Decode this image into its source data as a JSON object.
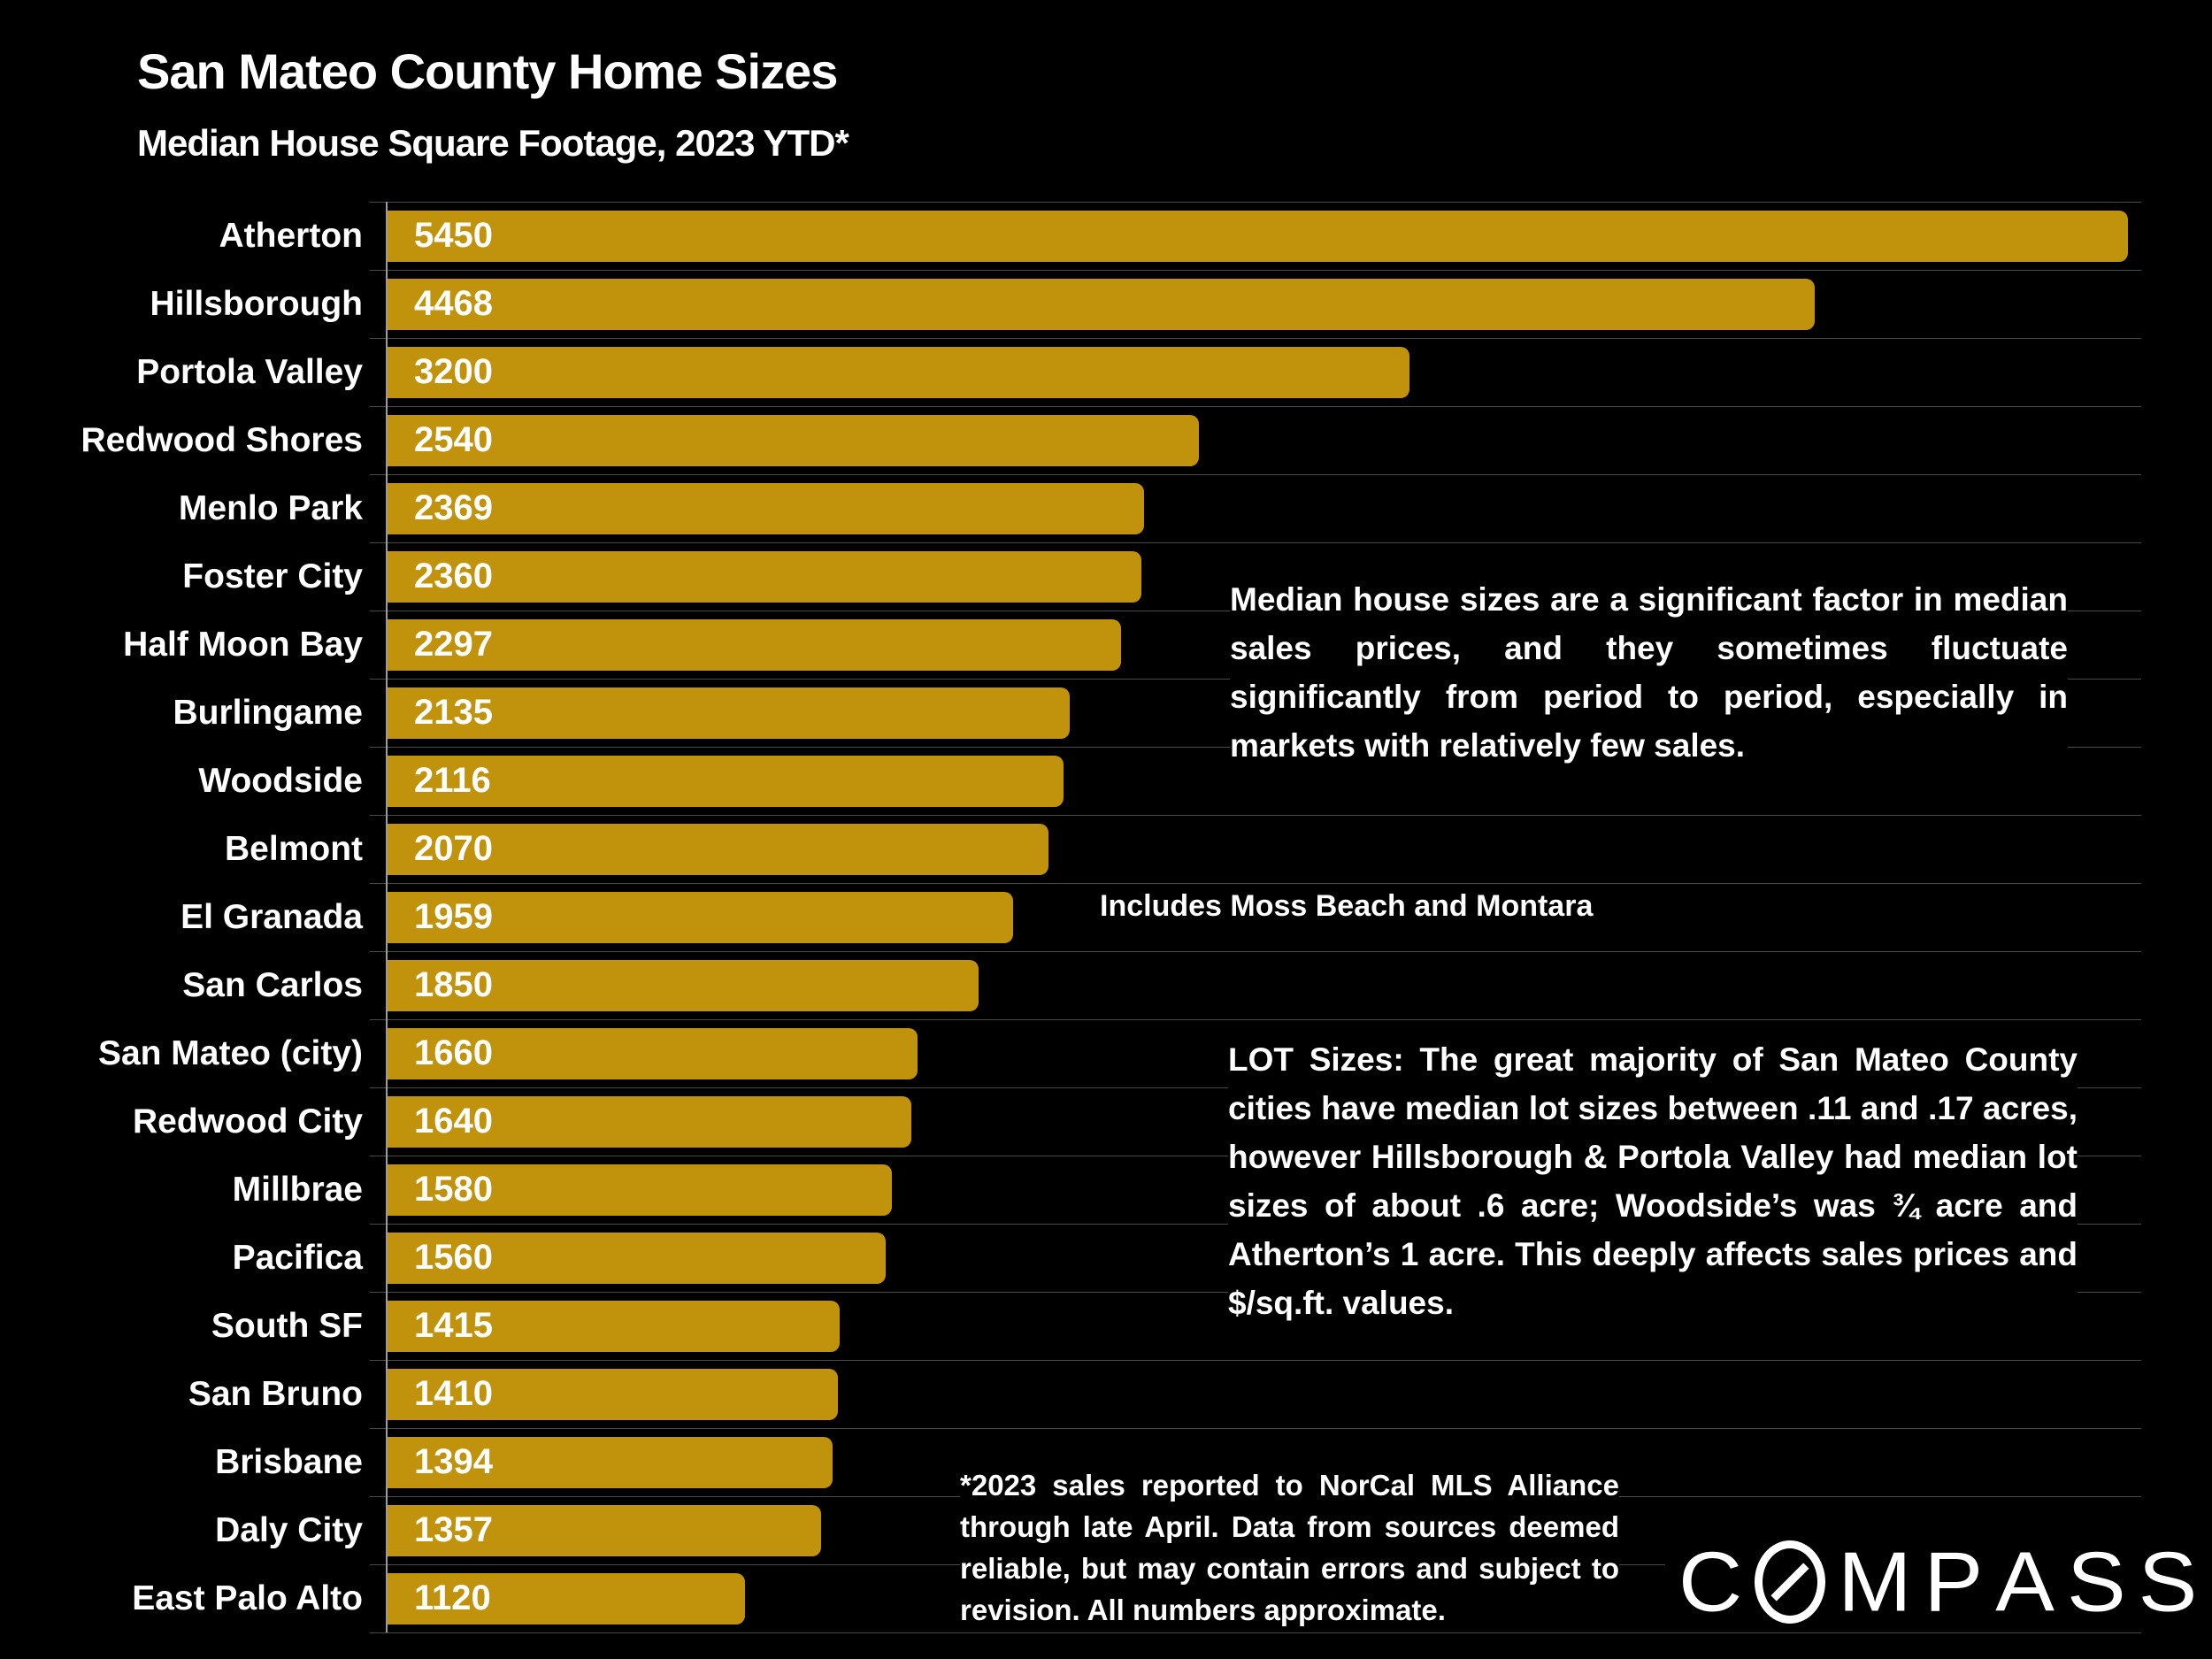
{
  "title": "San Mateo County Home Sizes",
  "subtitle": "Median House Square Footage, 2023 YTD*",
  "chart_data": {
    "type": "bar",
    "orientation": "horizontal",
    "title": "San Mateo County Home Sizes",
    "subtitle": "Median House Square Footage, 2023 YTD*",
    "xlabel": "",
    "ylabel": "",
    "xlim": [
      0,
      5450
    ],
    "grid": "row-separators",
    "categories": [
      "Atherton",
      "Hillsborough",
      "Portola Valley",
      "Redwood Shores",
      "Menlo Park",
      "Foster City",
      "Half Moon Bay",
      "Burlingame",
      "Woodside",
      "Belmont",
      "El Granada",
      "San Carlos",
      "San Mateo (city)",
      "Redwood City",
      "Millbrae",
      "Pacifica",
      "South SF",
      "San Bruno",
      "Brisbane",
      "Daly City",
      "East Palo Alto"
    ],
    "values": [
      5450,
      4468,
      3200,
      2540,
      2369,
      2360,
      2297,
      2135,
      2116,
      2070,
      1959,
      1850,
      1660,
      1640,
      1580,
      1560,
      1415,
      1410,
      1394,
      1357,
      1120
    ],
    "bar_color": "#C1920B",
    "value_label_color": "#FFFFFF",
    "background_color": "#000000",
    "gridline_color": "#4A4A4A",
    "axis_color": "#9C9C9C",
    "annotations": [
      "Median house sizes are a significant factor in median sales prices, and they sometimes fluctuate significantly from period to period, especially in markets with relatively few sales.",
      "Includes Moss Beach and Montara",
      "LOT Sizes: The great majority of San Mateo County cities have median lot sizes between .11 and .17 acres, however Hillsborough & Portola Valley had median lot sizes of about .6 acre; Woodside’s was ¾ acre and Atherton’s 1 acre. This deeply affects sales prices and $/sq.ft. values.",
      "*2023 sales reported to NorCal MLS Alliance through late April. Data from sources deemed reliable, but may contain errors and subject to revision. All numbers approximate."
    ]
  },
  "notes": {
    "median_note": "Median house sizes are a significant factor in median sales prices, and they sometimes fluctuate significantly from period to period, especially in markets with relatively few sales.",
    "el_granada_note": "Includes Moss Beach and Montara",
    "lot_note": "LOT Sizes: The great majority of San Mateo County cities have median lot sizes between .11 and .17 acres, however Hillsborough & Portola Valley had median lot sizes of about .6 acre; Woodside’s was ¾ acre and Atherton’s 1 acre. This deeply affects sales prices and $/sq.ft. values.",
    "footnote": "*2023 sales reported to NorCal MLS Alliance through late April. Data from sources deemed reliable, but may contain errors and subject to revision. All numbers approximate."
  },
  "logo": {
    "brand": "COMPASS"
  }
}
